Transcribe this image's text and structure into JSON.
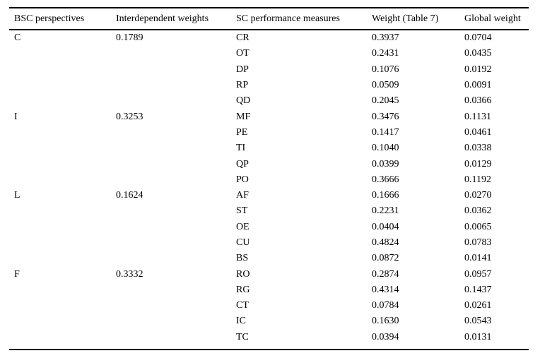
{
  "table": {
    "columns": [
      "BSC perspectives",
      "Interdependent weights",
      "SC performance measures",
      "Weight (Table 7)",
      "Global weight"
    ],
    "rows": [
      [
        "C",
        "0.1789",
        "CR",
        "0.3937",
        "0.0704"
      ],
      [
        "",
        "",
        "OT",
        "0.2431",
        "0.0435"
      ],
      [
        "",
        "",
        "DP",
        "0.1076",
        "0.0192"
      ],
      [
        "",
        "",
        "RP",
        "0.0509",
        "0.0091"
      ],
      [
        "",
        "",
        "QD",
        "0.2045",
        "0.0366"
      ],
      [
        "I",
        "0.3253",
        "MF",
        "0.3476",
        "0.1131"
      ],
      [
        "",
        "",
        "PE",
        "0.1417",
        "0.0461"
      ],
      [
        "",
        "",
        "TI",
        "0.1040",
        "0.0338"
      ],
      [
        "",
        "",
        "QP",
        "0.0399",
        "0.0129"
      ],
      [
        "",
        "",
        "PO",
        "0.3666",
        "0.1192"
      ],
      [
        "L",
        "0.1624",
        "AF",
        "0.1666",
        "0.0270"
      ],
      [
        "",
        "",
        "ST",
        "0.2231",
        "0.0362"
      ],
      [
        "",
        "",
        "OE",
        "0.0404",
        "0.0065"
      ],
      [
        "",
        "",
        "CU",
        "0.4824",
        "0.0783"
      ],
      [
        "",
        "",
        "BS",
        "0.0872",
        "0.0141"
      ],
      [
        "F",
        "0.3332",
        "RO",
        "0.2874",
        "0.0957"
      ],
      [
        "",
        "",
        "RG",
        "0.4314",
        "0.1437"
      ],
      [
        "",
        "",
        "CT",
        "0.0784",
        "0.0261"
      ],
      [
        "",
        "",
        "IC",
        "0.1630",
        "0.0543"
      ],
      [
        "",
        "",
        "TC",
        "0.0394",
        "0.0131"
      ]
    ]
  }
}
